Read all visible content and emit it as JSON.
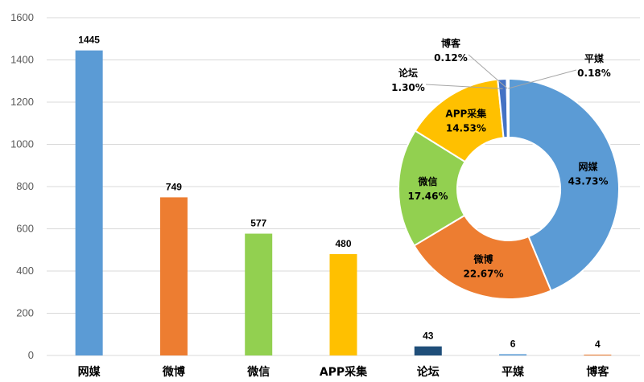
{
  "chart_data": [
    {
      "type": "bar",
      "categories": [
        "网媒",
        "微博",
        "微信",
        "APP采集",
        "论坛",
        "平媒",
        "博客"
      ],
      "values": [
        1445,
        749,
        577,
        480,
        43,
        6,
        4
      ],
      "colors": [
        "#5b9bd5",
        "#ed7d31",
        "#92d050",
        "#ffc000",
        "#1f4e79",
        "#5b9bd5",
        "#ed7d31"
      ],
      "ylim": [
        0,
        1600
      ],
      "yticks": [
        0,
        200,
        400,
        600,
        800,
        1000,
        1200,
        1400,
        1600
      ],
      "grid": true,
      "data_labels": true
    },
    {
      "type": "pie",
      "donut": true,
      "categories": [
        "网媒",
        "微博",
        "微信",
        "APP采集",
        "论坛",
        "博客",
        "平媒"
      ],
      "values": [
        43.73,
        22.67,
        17.46,
        14.53,
        1.3,
        0.12,
        0.18
      ],
      "labels": [
        "43.73%",
        "22.67%",
        "17.46%",
        "14.53%",
        "1.30%",
        "0.12%",
        "0.18%"
      ],
      "colors": [
        "#5b9bd5",
        "#ed7d31",
        "#92d050",
        "#ffc000",
        "#4472c4",
        "#a5a5a5",
        "#70ad47"
      ]
    }
  ]
}
